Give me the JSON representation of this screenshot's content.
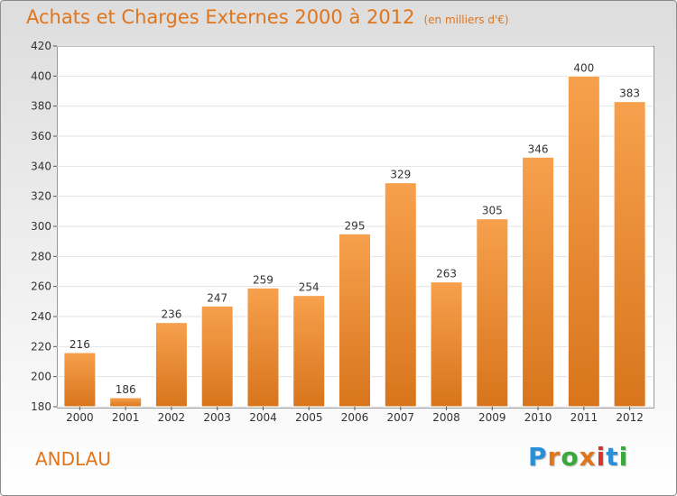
{
  "header": {
    "title": "Achats et Charges Externes 2000 à 2012",
    "subtitle": "(en milliers d'€)"
  },
  "footer": {
    "commune": "ANDLAU",
    "logo": "Proxiti"
  },
  "colors": {
    "accent": "#e0751c",
    "bar_top": "#f7a04d",
    "bar_bottom": "#d8751c"
  },
  "chart_data": {
    "type": "bar",
    "title": "Achats et Charges Externes 2000 à 2012",
    "subtitle": "(en milliers d'€)",
    "categories": [
      "2000",
      "2001",
      "2002",
      "2003",
      "2004",
      "2005",
      "2006",
      "2007",
      "2008",
      "2009",
      "2010",
      "2011",
      "2012"
    ],
    "values": [
      216,
      186,
      236,
      247,
      259,
      254,
      295,
      329,
      263,
      305,
      346,
      400,
      383
    ],
    "ylim": [
      180,
      420
    ],
    "yticks": [
      180,
      200,
      220,
      240,
      260,
      280,
      300,
      320,
      340,
      360,
      380,
      400,
      420
    ],
    "grid": true,
    "data_labels": true
  }
}
